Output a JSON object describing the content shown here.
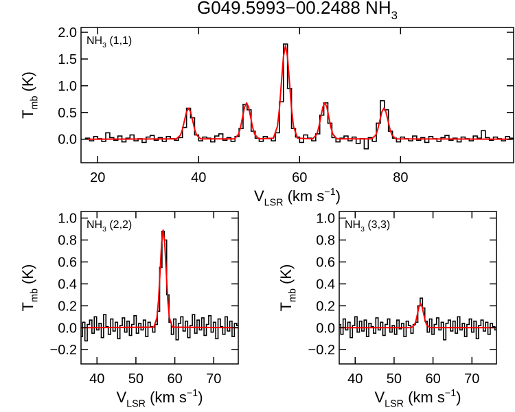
{
  "title": [
    {
      "text": "G049.5993−00.2488 NH"
    },
    {
      "text": "3",
      "script": "sub"
    }
  ],
  "chart_data": [
    {
      "type": "line",
      "label": [
        {
          "text": "NH"
        },
        {
          "text": "3",
          "script": "sub"
        },
        {
          "text": " (1,1)"
        }
      ],
      "xlabel": [
        {
          "text": "V"
        },
        {
          "text": "LSR",
          "script": "sub"
        },
        {
          "text": " (km s"
        },
        {
          "text": "−1",
          "script": "sup"
        },
        {
          "text": ")"
        }
      ],
      "ylabel": [
        {
          "text": "T"
        },
        {
          "text": "mb",
          "script": "sub"
        },
        {
          "text": " (K)"
        }
      ],
      "xlim": [
        16.7,
        102.4
      ],
      "ylim": [
        -0.44,
        2.09
      ],
      "xticks": [
        20,
        40,
        60,
        80
      ],
      "yticks": [
        {
          "value": 0,
          "label": "0.0"
        },
        0.5,
        {
          "value": 1,
          "label": "1.0"
        },
        1.5,
        {
          "value": 2,
          "label": "2.0"
        }
      ],
      "series": [
        {
          "color": "#000000",
          "step": true,
          "x": [
            18,
            18.8,
            19.6,
            20.4,
            21.2,
            22,
            22.8,
            23.6,
            24.4,
            25.2,
            26,
            26.8,
            27.6,
            28.4,
            29.2,
            30,
            30.8,
            31.6,
            32.4,
            33.2,
            34,
            34.8,
            35.6,
            36.4,
            37.2,
            38,
            38.8,
            39.6,
            40.4,
            41.2,
            42,
            42.8,
            43.6,
            44.4,
            45.2,
            46,
            46.8,
            47.6,
            48.4,
            49.2,
            50,
            50.8,
            51.6,
            52.4,
            53.2,
            54,
            54.8,
            55.6,
            56.4,
            57.2,
            58,
            58.8,
            59.6,
            60.4,
            61.2,
            62,
            62.8,
            63.6,
            64.4,
            65.2,
            66,
            66.8,
            67.6,
            68.4,
            69.2,
            70,
            70.8,
            71.6,
            72.4,
            73.2,
            74,
            74.8,
            75.6,
            76.4,
            77.2,
            78,
            78.8,
            79.6,
            80.4,
            81.2,
            82,
            82.8,
            83.6,
            84.4,
            85.2,
            86,
            86.8,
            87.6,
            88.4,
            89.2,
            90,
            90.8,
            91.6,
            92.4,
            93.2,
            94,
            94.8,
            95.6,
            96.4,
            97.2,
            98,
            98.8,
            99.6,
            100.4,
            101.2,
            102
          ],
          "values": [
            0.02,
            -0.03,
            0.05,
            0.01,
            -0.04,
            0.12,
            0.03,
            -0.02,
            0.06,
            -0.05,
            0.02,
            0.08,
            -0.03,
            0.01,
            -0.06,
            0.04,
            0.07,
            -0.02,
            0.03,
            -0.04,
            0.05,
            0.01,
            -0.02,
            0.03,
            0.22,
            0.58,
            0.4,
            0.08,
            -0.03,
            0.04,
            0.02,
            -0.05,
            0.06,
            0.1,
            -0.02,
            0.03,
            -0.04,
            0.05,
            0.2,
            0.65,
            0.55,
            0.15,
            0.02,
            -0.04,
            0.05,
            0.01,
            -0.03,
            0.12,
            0.7,
            1.78,
            0.95,
            0.2,
            0.04,
            -0.06,
            0.08,
            0.02,
            -0.03,
            0.1,
            0.45,
            0.68,
            0.3,
            0.03,
            -0.05,
            0.02,
            0.06,
            -0.03,
            0.04,
            -0.08,
            0.01,
            -0.18,
            0.03,
            -0.04,
            0.3,
            0.72,
            0.55,
            0.15,
            0.02,
            -0.05,
            0.04,
            0.01,
            -0.03,
            0.06,
            -0.02,
            0.03,
            -0.06,
            0.05,
            0.01,
            -0.04,
            0.03,
            0.07,
            -0.02,
            0.02,
            -0.05,
            0.04,
            0.01,
            -0.03,
            0.06,
            0.02,
            0.16,
            0.03,
            -0.02,
            0.04,
            0.01,
            -0.03,
            0.05,
            0.02
          ]
        },
        {
          "color": "#ff0000",
          "x": [
            18,
            35.6,
            36.4,
            36.8,
            37.2,
            37.6,
            38.0,
            38.4,
            38.8,
            39.2,
            39.6,
            40.4,
            47.1,
            47.9,
            48.3,
            48.7,
            49.1,
            49.5,
            49.9,
            50.3,
            50.7,
            51.1,
            51.9,
            54.8,
            55.6,
            56.0,
            56.4,
            56.8,
            57.2,
            57.6,
            58.0,
            58.4,
            58.8,
            59.6,
            62.6,
            63.4,
            63.8,
            64.2,
            64.6,
            65.0,
            65.4,
            65.8,
            66.2,
            66.6,
            67.4,
            74.3,
            75.1,
            75.5,
            75.9,
            76.3,
            76.7,
            77.1,
            77.5,
            77.9,
            78.3,
            79.1,
            102
          ],
          "values": [
            0,
            0.006,
            0.078,
            0.189,
            0.352,
            0.512,
            0.58,
            0.512,
            0.352,
            0.189,
            0.078,
            0.006,
            0.007,
            0.092,
            0.221,
            0.413,
            0.6,
            0.68,
            0.6,
            0.413,
            0.221,
            0.092,
            0.007,
            0.019,
            0.236,
            0.569,
            1.062,
            1.544,
            1.75,
            1.544,
            1.062,
            0.569,
            0.236,
            0.019,
            0.007,
            0.092,
            0.221,
            0.413,
            0.6,
            0.68,
            0.6,
            0.413,
            0.221,
            0.092,
            0.007,
            0.006,
            0.078,
            0.189,
            0.352,
            0.512,
            0.58,
            0.512,
            0.352,
            0.189,
            0.078,
            0.006,
            0
          ]
        }
      ]
    },
    {
      "type": "line",
      "label": [
        {
          "text": "NH"
        },
        {
          "text": "3",
          "script": "sub"
        },
        {
          "text": " (2,2)"
        }
      ],
      "xlabel": [
        {
          "text": "V"
        },
        {
          "text": "LSR",
          "script": "sub"
        },
        {
          "text": " (km s"
        },
        {
          "text": "−1",
          "script": "sup"
        },
        {
          "text": ")"
        }
      ],
      "ylabel": [
        {
          "text": "T"
        },
        {
          "text": "mb",
          "script": "sub"
        },
        {
          "text": " (K)"
        }
      ],
      "xlim": [
        35.9,
        76.3
      ],
      "ylim": [
        -0.33,
        1.06
      ],
      "xticks": [
        40,
        50,
        60,
        70
      ],
      "yticks": [
        {
          "value": -0.2,
          "label": "−0.2"
        },
        {
          "value": 0,
          "label": "0.0"
        },
        0.2,
        0.4,
        0.6,
        0.8,
        {
          "value": 1,
          "label": "1.0"
        }
      ],
      "series": [
        {
          "color": "#000000",
          "step": true,
          "x": [
            36,
            36.6,
            37.2,
            37.8,
            38.4,
            39,
            39.6,
            40.2,
            40.8,
            41.4,
            42,
            42.6,
            43.2,
            43.8,
            44.4,
            45,
            45.6,
            46.2,
            46.8,
            47.4,
            48,
            48.6,
            49.2,
            49.8,
            50.4,
            51,
            51.6,
            52.2,
            52.8,
            53.4,
            54,
            54.6,
            55.2,
            55.8,
            56.4,
            57,
            57.6,
            58.2,
            58.8,
            59.4,
            60,
            60.6,
            61.2,
            61.8,
            62.4,
            63,
            63.6,
            64.2,
            64.8,
            65.4,
            66,
            66.6,
            67.2,
            67.8,
            68.4,
            69,
            69.6,
            70.2,
            70.8,
            71.4,
            72,
            72.6,
            73.2,
            73.8,
            74.4,
            75,
            75.6,
            76.2
          ],
          "values": [
            -0.08,
            0.05,
            -0.12,
            0.03,
            0.07,
            -0.05,
            0.1,
            -0.02,
            0.04,
            -0.09,
            0.12,
            0.01,
            -0.06,
            0.08,
            -0.03,
            0.05,
            -0.1,
            0.02,
            0.09,
            -0.04,
            0.06,
            -0.07,
            0.03,
            0.11,
            -0.05,
            0.04,
            -0.02,
            0.07,
            -0.08,
            0.05,
            0.01,
            -0.04,
            0.03,
            0.15,
            0.55,
            0.88,
            0.8,
            0.3,
            0.05,
            -0.06,
            0.08,
            -0.11,
            0.04,
            0.1,
            -0.03,
            0.06,
            -0.09,
            0.02,
            0.12,
            -0.05,
            0.07,
            -0.02,
            0.09,
            -0.07,
            0.03,
            0.11,
            -0.04,
            0.05,
            -0.1,
            0.08,
            0.01,
            -0.06,
            0.1,
            -0.03,
            0.06,
            -0.08,
            0.04,
            0.02
          ]
        },
        {
          "color": "#ff0000",
          "x": [
            36,
            54.6,
            55.4,
            55.8,
            56.2,
            56.6,
            57.0,
            57.4,
            57.8,
            58.2,
            58.6,
            59.4,
            76.2
          ],
          "values": [
            0,
            0.005,
            0.092,
            0.247,
            0.504,
            0.772,
            0.89,
            0.772,
            0.504,
            0.247,
            0.092,
            0.005,
            0
          ]
        }
      ]
    },
    {
      "type": "line",
      "label": [
        {
          "text": "NH"
        },
        {
          "text": "3",
          "script": "sub"
        },
        {
          "text": " (3,3)"
        }
      ],
      "xlabel": [
        {
          "text": "V"
        },
        {
          "text": "LSR",
          "script": "sub"
        },
        {
          "text": " (km s"
        },
        {
          "text": "−1",
          "script": "sup"
        },
        {
          "text": ")"
        }
      ],
      "ylabel": [
        {
          "text": "T"
        },
        {
          "text": "mb",
          "script": "sub"
        },
        {
          "text": " (K)"
        }
      ],
      "xlim": [
        35.9,
        76.3
      ],
      "ylim": [
        -0.33,
        1.06
      ],
      "xticks": [
        40,
        50,
        60,
        70
      ],
      "yticks": [
        {
          "value": -0.2,
          "label": "−0.2"
        },
        {
          "value": 0,
          "label": "0.0"
        },
        0.2,
        0.4,
        0.6,
        0.8,
        {
          "value": 1,
          "label": "1.0"
        }
      ],
      "series": [
        {
          "color": "#000000",
          "step": true,
          "x": [
            36,
            36.6,
            37.2,
            37.8,
            38.4,
            39,
            39.6,
            40.2,
            40.8,
            41.4,
            42,
            42.6,
            43.2,
            43.8,
            44.4,
            45,
            45.6,
            46.2,
            46.8,
            47.4,
            48,
            48.6,
            49.2,
            49.8,
            50.4,
            51,
            51.6,
            52.2,
            52.8,
            53.4,
            54,
            54.6,
            55.2,
            55.8,
            56.4,
            57,
            57.6,
            58.2,
            58.8,
            59.4,
            60,
            60.6,
            61.2,
            61.8,
            62.4,
            63,
            63.6,
            64.2,
            64.8,
            65.4,
            66,
            66.6,
            67.2,
            67.8,
            68.4,
            69,
            69.6,
            70.2,
            70.8,
            71.4,
            72,
            72.6,
            73.2,
            73.8,
            74.4,
            75,
            75.6,
            76.2
          ],
          "values": [
            0.03,
            -0.06,
            0.08,
            -0.02,
            0.05,
            -0.09,
            0.02,
            0.1,
            -0.04,
            0.06,
            -0.03,
            0.07,
            -0.08,
            0.04,
            0.01,
            -0.05,
            0.09,
            -0.02,
            0.05,
            -0.07,
            0.03,
            0.08,
            -0.04,
            0.02,
            -0.06,
            0.07,
            -0.01,
            0.04,
            -0.08,
            0.06,
            0.02,
            -0.05,
            0.03,
            0.05,
            0.2,
            0.27,
            0.18,
            0.06,
            -0.04,
            0.08,
            -0.06,
            0.03,
            0.09,
            -0.02,
            0.05,
            -0.11,
            0.04,
            0.07,
            -0.03,
            0.06,
            -0.05,
            0.1,
            -0.02,
            0.04,
            -0.08,
            0.03,
            0.08,
            -0.04,
            0.06,
            -0.1,
            0.02,
            0.07,
            -0.03,
            0.05,
            -0.06,
            0.04,
            0.01,
            -0.02
          ]
        },
        {
          "color": "#ff0000",
          "x": [
            36,
            54.4,
            55.2,
            55.6,
            56.0,
            56.4,
            56.8,
            57.2,
            57.6,
            58.0,
            58.4,
            59.2,
            76.2
          ],
          "values": [
            0,
            0.001,
            0.023,
            0.061,
            0.125,
            0.191,
            0.22,
            0.191,
            0.125,
            0.061,
            0.023,
            0.001,
            0
          ]
        }
      ]
    }
  ]
}
